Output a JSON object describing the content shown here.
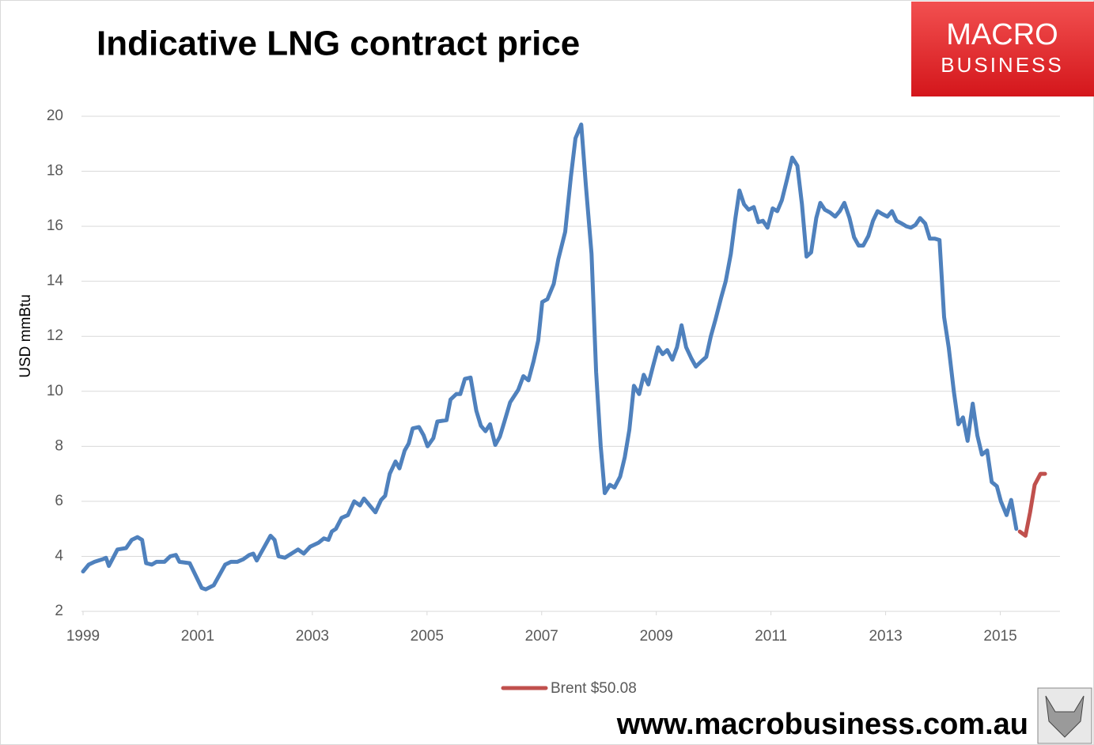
{
  "chart_data": {
    "type": "line",
    "title": "Indicative LNG contract price",
    "y_label": "USD mmBtu",
    "logo": [
      "MACRO",
      "BUSINESS"
    ],
    "footer": "www.macrobusiness.com.au",
    "xlim": [
      1999,
      2016
    ],
    "xticks": [
      1999,
      2001,
      2003,
      2005,
      2007,
      2009,
      2011,
      2013,
      2015
    ],
    "ylim": [
      2,
      20
    ],
    "yticks": [
      2,
      4,
      6,
      8,
      10,
      12,
      14,
      16,
      18,
      20
    ],
    "grid": true,
    "legend": "bottom",
    "series": [
      {
        "color": "#4f81bd",
        "x": [
          1999.0,
          1999.1,
          1999.2,
          1999.35,
          1999.4,
          1999.45,
          1999.6,
          1999.75,
          1999.85,
          1999.95,
          2000.03,
          2000.1,
          2000.2,
          2000.28,
          2000.42,
          2000.52,
          2000.62,
          2000.68,
          2000.86,
          2001.07,
          2001.14,
          2001.28,
          2001.48,
          2001.58,
          2001.69,
          2001.8,
          2001.9,
          2001.97,
          2002.03,
          2002.27,
          2002.34,
          2002.41,
          2002.52,
          2002.75,
          2002.85,
          2002.96,
          2003.11,
          2003.2,
          2003.28,
          2003.34,
          2003.41,
          2003.51,
          2003.62,
          2003.73,
          2003.83,
          2003.9,
          2004.1,
          2004.2,
          2004.27,
          2004.35,
          2004.45,
          2004.52,
          2004.61,
          2004.68,
          2004.75,
          2004.86,
          2004.94,
          2005.01,
          2005.11,
          2005.18,
          2005.34,
          2005.41,
          2005.51,
          2005.58,
          2005.66,
          2005.76,
          2005.86,
          2005.94,
          2006.02,
          2006.1,
          2006.19,
          2006.27,
          2006.35,
          2006.45,
          2006.59,
          2006.68,
          2006.77,
          2006.86,
          2006.94,
          2007.01,
          2007.1,
          2007.21,
          2007.29,
          2007.41,
          2007.51,
          2007.59,
          2007.69,
          2007.77,
          2007.87,
          2007.95,
          2008.03,
          2008.1,
          2008.19,
          2008.27,
          2008.37,
          2008.45,
          2008.53,
          2008.61,
          2008.7,
          2008.78,
          2008.86,
          2008.94,
          2009.03,
          2009.11,
          2009.19,
          2009.28,
          2009.36,
          2009.44,
          2009.52,
          2009.61,
          2009.69,
          2009.79,
          2009.87,
          2009.95,
          2010.03,
          2010.13,
          2010.21,
          2010.3,
          2010.38,
          2010.45,
          2010.53,
          2010.61,
          2010.7,
          2010.78,
          2010.86,
          2010.94,
          2011.03,
          2011.11,
          2011.19,
          2011.28,
          2011.37,
          2011.46,
          2011.54,
          2011.62,
          2011.7,
          2011.79,
          2011.86,
          2011.94,
          2012.03,
          2012.12,
          2012.2,
          2012.28,
          2012.37,
          2012.45,
          2012.53,
          2012.61,
          2012.7,
          2012.78,
          2012.86,
          2012.94,
          2013.03,
          2013.11,
          2013.19,
          2013.28,
          2013.36,
          2013.44,
          2013.52,
          2013.6,
          2013.69,
          2013.77,
          2013.86,
          2013.94,
          2014.02,
          2014.1,
          2014.19,
          2014.27,
          2014.35,
          2014.43,
          2014.52,
          2014.6,
          2014.68,
          2014.77,
          2014.85,
          2014.94,
          2015.01,
          2015.11,
          2015.19,
          2015.28
        ],
        "values": [
          3.45,
          3.7,
          3.8,
          3.9,
          3.95,
          3.65,
          4.25,
          4.3,
          4.6,
          4.7,
          4.6,
          3.75,
          3.7,
          3.8,
          3.8,
          4.0,
          4.05,
          3.8,
          3.75,
          2.85,
          2.8,
          2.95,
          3.7,
          3.8,
          3.8,
          3.9,
          4.05,
          4.1,
          3.85,
          4.75,
          4.6,
          4.0,
          3.95,
          4.25,
          4.1,
          4.35,
          4.5,
          4.65,
          4.6,
          4.9,
          5.0,
          5.4,
          5.5,
          6.0,
          5.85,
          6.1,
          5.6,
          6.05,
          6.2,
          7.0,
          7.45,
          7.2,
          7.85,
          8.1,
          8.65,
          8.7,
          8.4,
          8.0,
          8.3,
          8.9,
          8.95,
          9.7,
          9.9,
          9.9,
          10.45,
          10.5,
          9.3,
          8.75,
          8.55,
          8.8,
          8.05,
          8.35,
          8.9,
          9.6,
          10.05,
          10.55,
          10.4,
          11.1,
          11.85,
          13.25,
          13.35,
          13.9,
          14.8,
          15.8,
          17.8,
          19.2,
          19.7,
          17.5,
          15.0,
          10.7,
          8.0,
          6.3,
          6.6,
          6.5,
          6.9,
          7.6,
          8.6,
          10.2,
          9.9,
          10.6,
          10.25,
          10.9,
          11.6,
          11.35,
          11.5,
          11.15,
          11.6,
          12.4,
          11.6,
          11.2,
          10.9,
          11.1,
          11.25,
          12.0,
          12.6,
          13.4,
          14.0,
          15.0,
          16.3,
          17.3,
          16.8,
          16.6,
          16.7,
          16.15,
          16.2,
          15.95,
          16.65,
          16.55,
          16.95,
          17.7,
          18.5,
          18.2,
          16.8,
          14.9,
          15.05,
          16.3,
          16.85,
          16.6,
          16.5,
          16.35,
          16.55,
          16.85,
          16.3,
          15.6,
          15.3,
          15.3,
          15.65,
          16.2,
          16.55,
          16.45,
          16.35,
          16.55,
          16.2,
          16.1,
          16.0,
          15.95,
          16.05,
          16.3,
          16.1,
          15.55,
          15.55,
          15.5,
          12.7,
          11.6,
          10.0,
          8.8,
          9.05,
          8.2,
          9.55,
          8.4,
          7.7,
          7.85,
          6.7,
          6.55,
          6.0,
          5.5,
          6.05,
          5.0
        ]
      },
      {
        "name": "Brent $50.08",
        "color": "#c0504d",
        "x": [
          2015.34,
          2015.44,
          2015.52,
          2015.6,
          2015.7,
          2015.78
        ],
        "values": [
          4.9,
          4.75,
          5.6,
          6.6,
          7.0,
          7.0
        ]
      }
    ]
  }
}
